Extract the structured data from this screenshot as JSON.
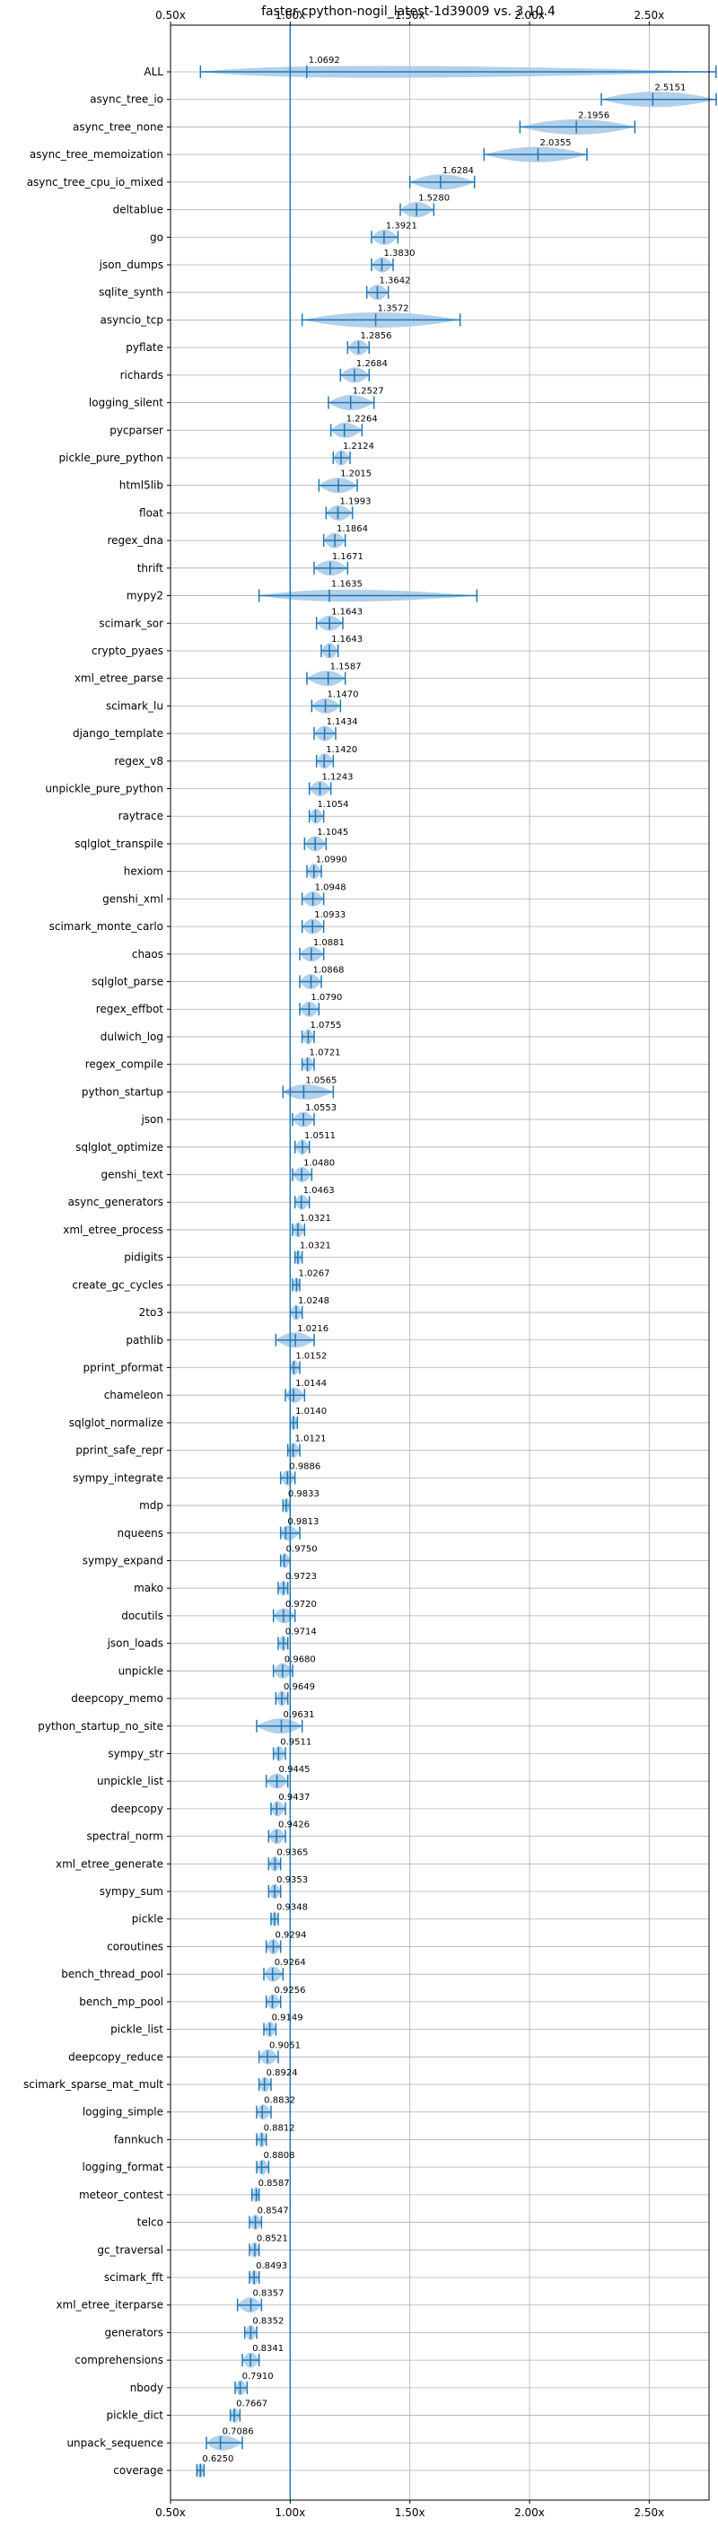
{
  "chart_data": {
    "type": "violin",
    "orientation": "horizontal",
    "title": "faster-cpython-nogil_latest-1d39009 vs. 3.10.4",
    "xlabel": "",
    "ylabel": "",
    "xlim": [
      0.5,
      2.75
    ],
    "xticks": [
      0.5,
      1.0,
      1.5,
      2.0,
      2.5
    ],
    "xtick_labels": [
      "0.50x",
      "1.00x",
      "1.50x",
      "2.00x",
      "2.50x"
    ],
    "reference_line": 1.0,
    "grid": true,
    "colors": {
      "violin": "#a6c8e6",
      "stat": "#1f77b4",
      "reference": "#1f77b4",
      "grid": "#b0b0b0"
    },
    "benchmarks": [
      {
        "name": "ALL",
        "value": 1.0692,
        "min": 0.625,
        "max": 2.7791
      },
      {
        "name": "async_tree_io",
        "value": 2.5151,
        "min": 2.3,
        "max": 2.78
      },
      {
        "name": "async_tree_none",
        "value": 2.1956,
        "min": 1.96,
        "max": 2.44
      },
      {
        "name": "async_tree_memoization",
        "value": 2.0355,
        "min": 1.81,
        "max": 2.24
      },
      {
        "name": "async_tree_cpu_io_mixed",
        "value": 1.6284,
        "min": 1.5,
        "max": 1.77
      },
      {
        "name": "deltablue",
        "value": 1.528,
        "min": 1.46,
        "max": 1.6
      },
      {
        "name": "go",
        "value": 1.3921,
        "min": 1.34,
        "max": 1.45
      },
      {
        "name": "json_dumps",
        "value": 1.383,
        "min": 1.34,
        "max": 1.43
      },
      {
        "name": "sqlite_synth",
        "value": 1.3642,
        "min": 1.32,
        "max": 1.41
      },
      {
        "name": "asyncio_tcp",
        "value": 1.3572,
        "min": 1.05,
        "max": 1.71
      },
      {
        "name": "pyflate",
        "value": 1.2856,
        "min": 1.24,
        "max": 1.33
      },
      {
        "name": "richards",
        "value": 1.2684,
        "min": 1.21,
        "max": 1.33
      },
      {
        "name": "logging_silent",
        "value": 1.2527,
        "min": 1.16,
        "max": 1.35
      },
      {
        "name": "pycparser",
        "value": 1.2264,
        "min": 1.17,
        "max": 1.3
      },
      {
        "name": "pickle_pure_python",
        "value": 1.2124,
        "min": 1.18,
        "max": 1.25
      },
      {
        "name": "html5lib",
        "value": 1.2015,
        "min": 1.12,
        "max": 1.28
      },
      {
        "name": "float",
        "value": 1.1993,
        "min": 1.15,
        "max": 1.26
      },
      {
        "name": "regex_dna",
        "value": 1.1864,
        "min": 1.14,
        "max": 1.23
      },
      {
        "name": "thrift",
        "value": 1.1671,
        "min": 1.1,
        "max": 1.24
      },
      {
        "name": "mypy2",
        "value": 1.1635,
        "min": 0.87,
        "max": 1.78
      },
      {
        "name": "scimark_sor",
        "value": 1.1643,
        "min": 1.11,
        "max": 1.22
      },
      {
        "name": "crypto_pyaes",
        "value": 1.1643,
        "min": 1.13,
        "max": 1.2
      },
      {
        "name": "xml_etree_parse",
        "value": 1.1587,
        "min": 1.07,
        "max": 1.23
      },
      {
        "name": "scimark_lu",
        "value": 1.147,
        "min": 1.09,
        "max": 1.21
      },
      {
        "name": "django_template",
        "value": 1.1434,
        "min": 1.1,
        "max": 1.19
      },
      {
        "name": "regex_v8",
        "value": 1.142,
        "min": 1.11,
        "max": 1.18
      },
      {
        "name": "unpickle_pure_python",
        "value": 1.1243,
        "min": 1.08,
        "max": 1.17
      },
      {
        "name": "raytrace",
        "value": 1.1054,
        "min": 1.08,
        "max": 1.14
      },
      {
        "name": "sqlglot_transpile",
        "value": 1.1045,
        "min": 1.06,
        "max": 1.15
      },
      {
        "name": "hexiom",
        "value": 1.099,
        "min": 1.07,
        "max": 1.13
      },
      {
        "name": "genshi_xml",
        "value": 1.0948,
        "min": 1.05,
        "max": 1.14
      },
      {
        "name": "scimark_monte_carlo",
        "value": 1.0933,
        "min": 1.05,
        "max": 1.14
      },
      {
        "name": "chaos",
        "value": 1.0881,
        "min": 1.04,
        "max": 1.14
      },
      {
        "name": "sqlglot_parse",
        "value": 1.0868,
        "min": 1.04,
        "max": 1.13
      },
      {
        "name": "regex_effbot",
        "value": 1.079,
        "min": 1.04,
        "max": 1.12
      },
      {
        "name": "dulwich_log",
        "value": 1.0755,
        "min": 1.05,
        "max": 1.1
      },
      {
        "name": "regex_compile",
        "value": 1.0721,
        "min": 1.05,
        "max": 1.1
      },
      {
        "name": "python_startup",
        "value": 1.0565,
        "min": 0.97,
        "max": 1.18
      },
      {
        "name": "json",
        "value": 1.0553,
        "min": 1.01,
        "max": 1.1
      },
      {
        "name": "sqlglot_optimize",
        "value": 1.0511,
        "min": 1.02,
        "max": 1.08
      },
      {
        "name": "genshi_text",
        "value": 1.048,
        "min": 1.01,
        "max": 1.09
      },
      {
        "name": "async_generators",
        "value": 1.0463,
        "min": 1.02,
        "max": 1.08
      },
      {
        "name": "xml_etree_process",
        "value": 1.0321,
        "min": 1.01,
        "max": 1.06
      },
      {
        "name": "pidigits",
        "value": 1.0321,
        "min": 1.02,
        "max": 1.05
      },
      {
        "name": "create_gc_cycles",
        "value": 1.0267,
        "min": 1.01,
        "max": 1.04
      },
      {
        "name": "2to3",
        "value": 1.0248,
        "min": 1.0,
        "max": 1.05
      },
      {
        "name": "pathlib",
        "value": 1.0216,
        "min": 0.94,
        "max": 1.1
      },
      {
        "name": "pprint_pformat",
        "value": 1.0152,
        "min": 1.0,
        "max": 1.04
      },
      {
        "name": "chameleon",
        "value": 1.0144,
        "min": 0.98,
        "max": 1.06
      },
      {
        "name": "sqlglot_normalize",
        "value": 1.014,
        "min": 1.0,
        "max": 1.03
      },
      {
        "name": "pprint_safe_repr",
        "value": 1.0121,
        "min": 0.99,
        "max": 1.04
      },
      {
        "name": "sympy_integrate",
        "value": 0.9886,
        "min": 0.96,
        "max": 1.02
      },
      {
        "name": "mdp",
        "value": 0.9833,
        "min": 0.97,
        "max": 1.0
      },
      {
        "name": "nqueens",
        "value": 0.9813,
        "min": 0.96,
        "max": 1.04
      },
      {
        "name": "sympy_expand",
        "value": 0.975,
        "min": 0.96,
        "max": 1.0
      },
      {
        "name": "mako",
        "value": 0.9723,
        "min": 0.95,
        "max": 0.99
      },
      {
        "name": "docutils",
        "value": 0.972,
        "min": 0.93,
        "max": 1.02
      },
      {
        "name": "json_loads",
        "value": 0.9714,
        "min": 0.95,
        "max": 0.99
      },
      {
        "name": "unpickle",
        "value": 0.968,
        "min": 0.93,
        "max": 1.01
      },
      {
        "name": "deepcopy_memo",
        "value": 0.9649,
        "min": 0.94,
        "max": 0.99
      },
      {
        "name": "python_startup_no_site",
        "value": 0.9631,
        "min": 0.86,
        "max": 1.05
      },
      {
        "name": "sympy_str",
        "value": 0.9511,
        "min": 0.93,
        "max": 0.98
      },
      {
        "name": "unpickle_list",
        "value": 0.9445,
        "min": 0.9,
        "max": 0.99
      },
      {
        "name": "deepcopy",
        "value": 0.9437,
        "min": 0.92,
        "max": 0.98
      },
      {
        "name": "spectral_norm",
        "value": 0.9426,
        "min": 0.91,
        "max": 0.98
      },
      {
        "name": "xml_etree_generate",
        "value": 0.9365,
        "min": 0.91,
        "max": 0.96
      },
      {
        "name": "sympy_sum",
        "value": 0.9353,
        "min": 0.91,
        "max": 0.96
      },
      {
        "name": "pickle",
        "value": 0.9348,
        "min": 0.92,
        "max": 0.95
      },
      {
        "name": "coroutines",
        "value": 0.9294,
        "min": 0.9,
        "max": 0.96
      },
      {
        "name": "bench_thread_pool",
        "value": 0.9264,
        "min": 0.89,
        "max": 0.97
      },
      {
        "name": "bench_mp_pool",
        "value": 0.9256,
        "min": 0.9,
        "max": 0.96
      },
      {
        "name": "pickle_list",
        "value": 0.9149,
        "min": 0.89,
        "max": 0.94
      },
      {
        "name": "deepcopy_reduce",
        "value": 0.9051,
        "min": 0.87,
        "max": 0.95
      },
      {
        "name": "scimark_sparse_mat_mult",
        "value": 0.8924,
        "min": 0.87,
        "max": 0.92
      },
      {
        "name": "logging_simple",
        "value": 0.8832,
        "min": 0.86,
        "max": 0.92
      },
      {
        "name": "fannkuch",
        "value": 0.8812,
        "min": 0.86,
        "max": 0.9
      },
      {
        "name": "logging_format",
        "value": 0.8808,
        "min": 0.86,
        "max": 0.91
      },
      {
        "name": "meteor_contest",
        "value": 0.8587,
        "min": 0.84,
        "max": 0.87
      },
      {
        "name": "telco",
        "value": 0.8547,
        "min": 0.83,
        "max": 0.88
      },
      {
        "name": "gc_traversal",
        "value": 0.8521,
        "min": 0.83,
        "max": 0.87
      },
      {
        "name": "scimark_fft",
        "value": 0.8493,
        "min": 0.83,
        "max": 0.87
      },
      {
        "name": "xml_etree_iterparse",
        "value": 0.8357,
        "min": 0.78,
        "max": 0.88
      },
      {
        "name": "generators",
        "value": 0.8352,
        "min": 0.81,
        "max": 0.86
      },
      {
        "name": "comprehensions",
        "value": 0.8341,
        "min": 0.8,
        "max": 0.87
      },
      {
        "name": "nbody",
        "value": 0.791,
        "min": 0.77,
        "max": 0.82
      },
      {
        "name": "pickle_dict",
        "value": 0.7667,
        "min": 0.75,
        "max": 0.79
      },
      {
        "name": "unpack_sequence",
        "value": 0.7086,
        "min": 0.65,
        "max": 0.8
      },
      {
        "name": "coverage",
        "value": 0.625,
        "min": 0.61,
        "max": 0.64
      }
    ]
  }
}
